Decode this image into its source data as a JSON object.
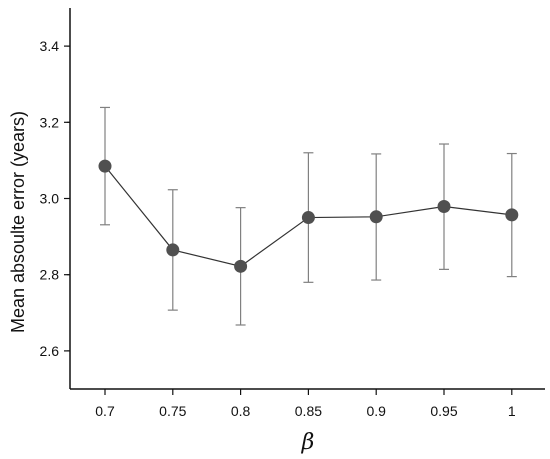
{
  "chart_data": {
    "type": "line",
    "title": "",
    "xlabel": "β",
    "ylabel": "Mean absoulte error (years)",
    "categories": [
      "0.7",
      "0.75",
      "0.8",
      "0.85",
      "0.9",
      "0.95",
      "1"
    ],
    "series": [
      {
        "values": [
          3.085,
          2.865,
          2.822,
          2.95,
          2.952,
          2.979,
          2.957
        ],
        "error_low": [
          2.931,
          2.707,
          2.668,
          2.78,
          2.786,
          2.814,
          2.795
        ],
        "error_high": [
          3.239,
          3.023,
          2.976,
          3.12,
          3.117,
          3.143,
          3.118
        ]
      }
    ],
    "ylim": [
      2.5,
      3.5
    ],
    "yticks": [
      2.6,
      2.8,
      3.0,
      3.2,
      3.4
    ],
    "ytick_labels": [
      "2.6",
      "2.8",
      "3.0",
      "3.2",
      "3.4"
    ],
    "grid": false,
    "colors": {
      "marker": "#505050",
      "line": "#333333",
      "errorbar": "#808080",
      "axis": "#111111"
    }
  }
}
